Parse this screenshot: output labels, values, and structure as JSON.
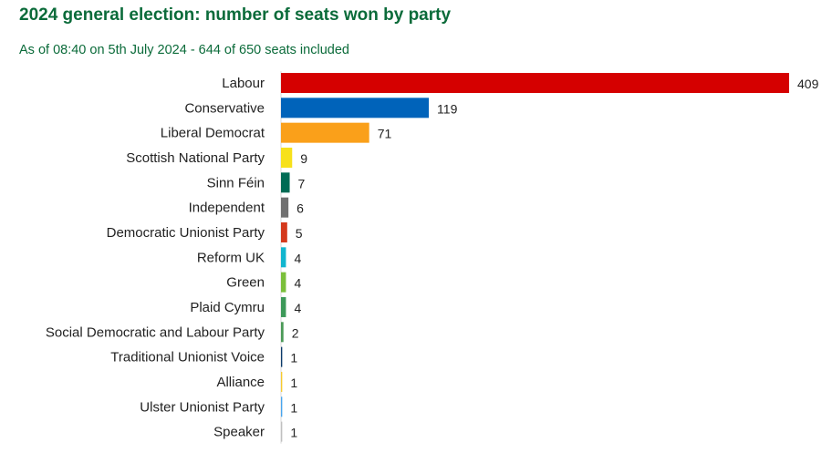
{
  "header": {
    "title": "2024 general election: number of seats won by party",
    "subtitle": "As of 08:40 on 5th July 2024 - 644 of 650 seats included"
  },
  "chart_data": {
    "type": "bar",
    "orientation": "horizontal",
    "title": "2024 general election: number of seats won by party",
    "subtitle": "As of 08:40 on 5th July 2024 - 644 of 650 seats included",
    "xlabel": "",
    "ylabel": "",
    "grid": false,
    "legend": "none",
    "xlim": [
      0,
      409
    ],
    "categories": [
      "Labour",
      "Conservative",
      "Liberal Democrat",
      "Scottish National Party",
      "Sinn Féin",
      "Independent",
      "Democratic Unionist Party",
      "Reform UK",
      "Green",
      "Plaid Cymru",
      "Social Democratic and Labour Party",
      "Traditional Unionist Voice",
      "Alliance",
      "Ulster Unionist Party",
      "Speaker"
    ],
    "values": [
      409,
      119,
      71,
      9,
      7,
      6,
      5,
      4,
      4,
      4,
      2,
      1,
      1,
      1,
      1
    ],
    "colors": [
      "#d50000",
      "#0063ba",
      "#faa01a",
      "#fdf38e",
      "#006b54",
      "#707070",
      "#d4391c",
      "#12b6cf",
      "#7bbf3b",
      "#3d9959",
      "#4c9a58",
      "#0c3a6a",
      "#f6cb2f",
      "#48a5ee",
      "#c0c0c0"
    ]
  }
}
